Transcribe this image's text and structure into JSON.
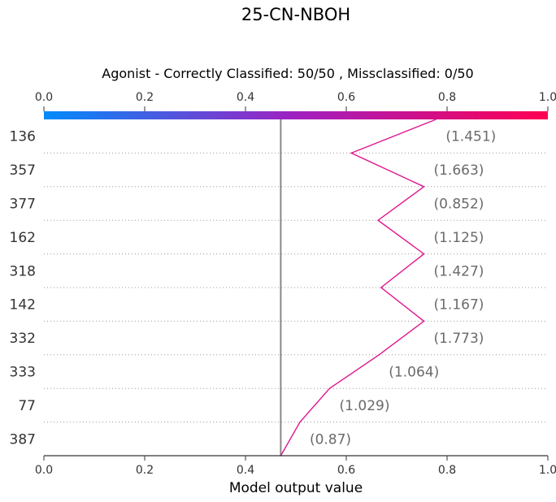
{
  "chart_data": {
    "type": "line",
    "title": "25-CN-NBOH",
    "subtitle": "Agonist - Correctly Classified: 50/50 , Missclassified: 0/50",
    "xlabel": "Model output value",
    "xlim": [
      0.0,
      1.0
    ],
    "x_ticks": [
      "0.0",
      "0.2",
      "0.4",
      "0.6",
      "0.8",
      "1.0"
    ],
    "colorbar": {
      "from": "#008bfb",
      "mid": "#a020c0",
      "to": "#ff0052"
    },
    "line_color": "#e0158f",
    "base_value": 0.47,
    "rows": [
      {
        "feature": "136",
        "value": "(1.451)",
        "output": 0.61
      },
      {
        "feature": "357",
        "value": "(1.663)",
        "output": 0.754
      },
      {
        "feature": "377",
        "value": "(0.852)",
        "output": 0.663
      },
      {
        "feature": "162",
        "value": "(1.125)",
        "output": 0.754
      },
      {
        "feature": "318",
        "value": "(1.427)",
        "output": 0.669
      },
      {
        "feature": "142",
        "value": "(1.167)",
        "output": 0.754
      },
      {
        "feature": "332",
        "value": "(1.773)",
        "output": 0.665
      },
      {
        "feature": "333",
        "value": "(1.064)",
        "output": 0.567
      },
      {
        "feature": "77",
        "value": "(1.029)",
        "output": 0.508
      },
      {
        "feature": "387",
        "value": "(0.87)",
        "output": 0.47
      }
    ],
    "top_output": 0.778,
    "grid": "dotted-row-separators"
  }
}
